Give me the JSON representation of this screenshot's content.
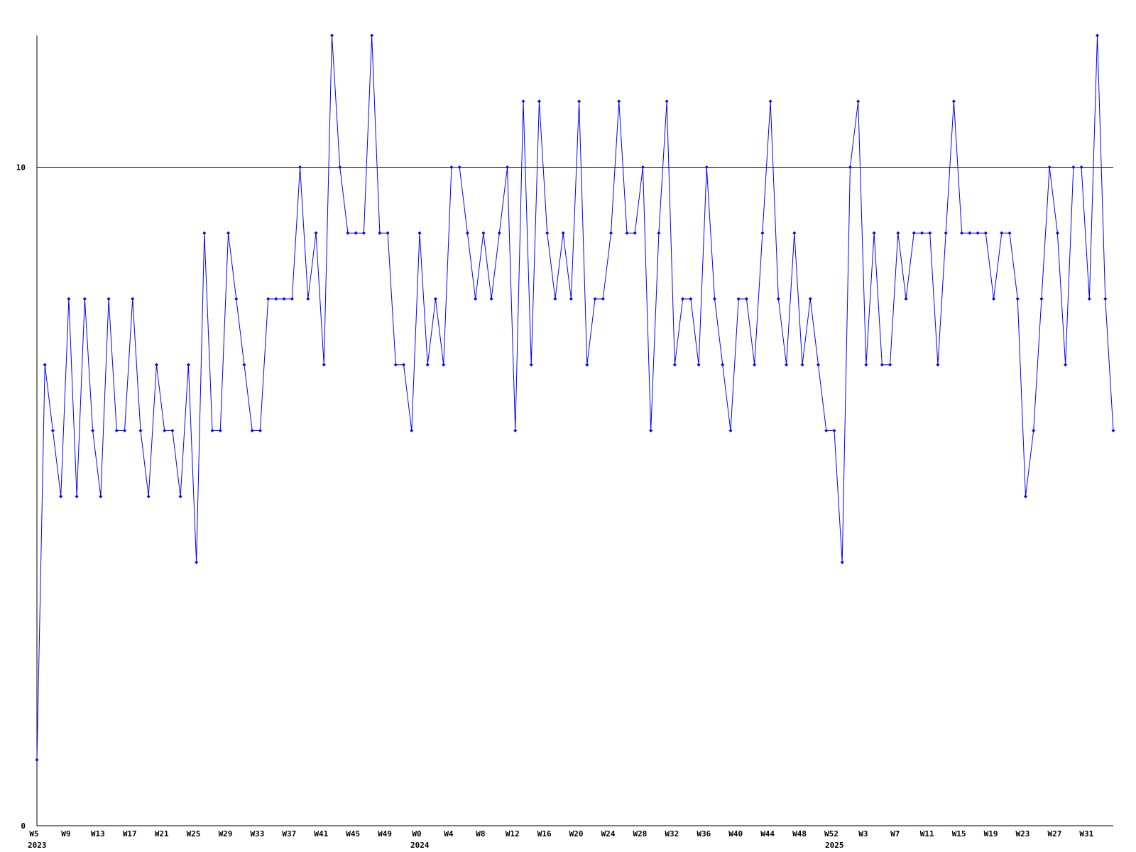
{
  "chart_data": {
    "type": "line",
    "categories": [
      "W5",
      null,
      null,
      null,
      "W9",
      null,
      null,
      null,
      "W13",
      null,
      null,
      null,
      "W17",
      null,
      null,
      null,
      "W21",
      null,
      null,
      null,
      "W25",
      null,
      null,
      null,
      "W29",
      null,
      null,
      null,
      "W33",
      null,
      null,
      null,
      "W37",
      null,
      null,
      null,
      "W41",
      null,
      null,
      null,
      "W45",
      null,
      null,
      null,
      "W49",
      null,
      null,
      null,
      "W0",
      null,
      null,
      null,
      "W4",
      null,
      null,
      null,
      "W8",
      null,
      null,
      null,
      "W12",
      null,
      null,
      null,
      "W16",
      null,
      null,
      null,
      "W20",
      null,
      null,
      null,
      "W24",
      null,
      null,
      null,
      "W28",
      null,
      null,
      null,
      "W32",
      null,
      null,
      null,
      "W36",
      null,
      null,
      null,
      "W40",
      null,
      null,
      null,
      "W44",
      null,
      null,
      null,
      "W48",
      null,
      null,
      null,
      "W52",
      null,
      null,
      null,
      "W3",
      null,
      null,
      null,
      "W7",
      null,
      null,
      null,
      "W11",
      null,
      null,
      null,
      "W15",
      null,
      null,
      null,
      "W19",
      null,
      null,
      null,
      "W23",
      null,
      null,
      null,
      "W27",
      null,
      null,
      null,
      "W31",
      null,
      null,
      null
    ],
    "years": [
      "2023",
      null,
      null,
      null,
      null,
      null,
      null,
      null,
      null,
      null,
      null,
      null,
      null,
      null,
      null,
      null,
      null,
      null,
      null,
      null,
      null,
      null,
      null,
      null,
      null,
      null,
      null,
      null,
      null,
      null,
      null,
      null,
      null,
      null,
      null,
      null,
      null,
      null,
      null,
      null,
      null,
      null,
      null,
      null,
      null,
      null,
      null,
      null,
      "2024",
      null,
      null,
      null,
      null,
      null,
      null,
      null,
      null,
      null,
      null,
      null,
      null,
      null,
      null,
      null,
      null,
      null,
      null,
      null,
      null,
      null,
      null,
      null,
      null,
      null,
      null,
      null,
      null,
      null,
      null,
      null,
      null,
      null,
      null,
      null,
      null,
      null,
      null,
      null,
      null,
      null,
      null,
      null,
      null,
      null,
      null,
      null,
      null,
      null,
      null,
      null,
      "2025",
      null,
      null,
      null,
      null,
      null,
      null,
      null,
      null,
      null,
      null,
      null,
      null,
      null,
      null,
      null,
      null,
      null,
      null,
      null,
      null,
      null,
      null,
      null,
      null,
      null,
      null,
      null,
      null,
      null,
      null,
      null,
      null,
      null,
      null,
      null
    ],
    "series": [
      {
        "color": "#0000ff",
        "values": [
          1,
          7,
          6,
          5,
          8,
          5,
          8,
          6,
          5,
          8,
          6,
          6,
          8,
          6,
          5,
          7,
          6,
          6,
          5,
          7,
          4,
          9,
          6,
          6,
          9,
          8,
          7,
          6,
          6,
          8,
          8,
          8,
          8,
          10,
          8,
          9,
          7,
          12,
          10,
          9,
          9,
          9,
          12,
          9,
          9,
          7,
          7,
          6,
          9,
          7,
          8,
          7,
          10,
          10,
          9,
          8,
          9,
          8,
          9,
          10,
          6,
          11,
          7,
          11,
          9,
          8,
          9,
          8,
          11,
          7,
          8,
          8,
          9,
          11,
          9,
          9,
          10,
          6,
          9,
          11,
          7,
          8,
          8,
          7,
          10,
          8,
          7,
          6,
          8,
          8,
          7,
          9,
          11,
          8,
          7,
          9,
          7,
          8,
          7,
          6,
          6,
          4,
          10,
          11,
          7,
          9,
          7,
          7,
          9,
          8,
          9,
          9,
          9,
          7,
          9,
          11,
          9,
          9,
          9,
          9,
          8,
          9,
          9,
          8,
          5,
          6,
          8,
          10,
          9,
          7,
          10,
          10,
          8,
          12,
          8,
          6
        ]
      }
    ],
    "ylim": [
      0,
      12
    ],
    "yticks": [
      0,
      10
    ],
    "grid": true
  }
}
